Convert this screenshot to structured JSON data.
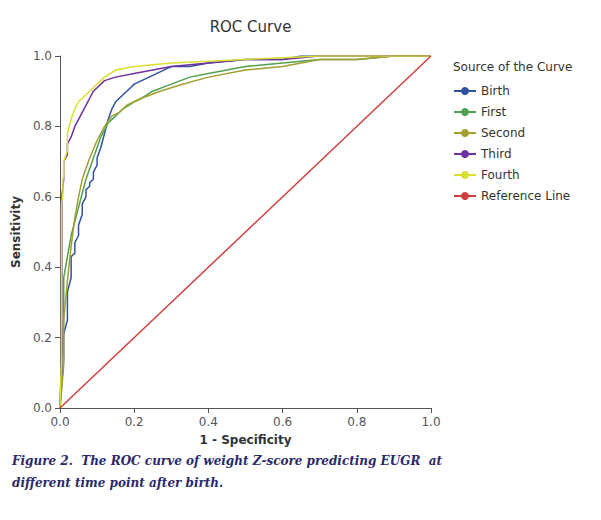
{
  "chart_data": {
    "type": "line",
    "title": "ROC Curve",
    "xlabel": "1 - Specificity",
    "ylabel": "Sensitivity",
    "legend_title": "Source of the Curve",
    "annotations": [
      "Figure 2.  The ROC curve of weight Z-score predicting EUGR  at",
      "different time point after birth."
    ],
    "xlim": [
      0.0,
      1.0
    ],
    "ylim": [
      0.0,
      1.0
    ],
    "xticks": [
      {
        "value": 0.0,
        "label": "0.0"
      },
      0.2,
      0.4,
      0.6,
      0.8,
      {
        "value": 1.0,
        "label": "1.0"
      }
    ],
    "yticks": [
      {
        "value": 0.0,
        "label": "0.0"
      },
      0.2,
      0.4,
      0.6,
      0.8,
      {
        "value": 1.0,
        "label": "1.0"
      }
    ],
    "grid": false,
    "legend": "right",
    "series": [
      {
        "name": "Birth",
        "color": "#3050a0",
        "x": [
          0.0,
          0.01,
          0.01,
          0.02,
          0.02,
          0.03,
          0.03,
          0.04,
          0.04,
          0.05,
          0.05,
          0.06,
          0.06,
          0.07,
          0.07,
          0.08,
          0.08,
          0.09,
          0.09,
          0.1,
          0.1,
          0.11,
          0.12,
          0.13,
          0.14,
          0.15,
          0.16,
          0.17,
          0.18,
          0.19,
          0.2,
          0.22,
          0.24,
          0.26,
          0.28,
          0.3,
          0.35,
          0.4,
          0.5,
          0.55,
          0.6,
          0.65,
          0.7,
          0.8,
          0.9,
          1.0
        ],
        "values": [
          0.0,
          0.14,
          0.21,
          0.25,
          0.33,
          0.37,
          0.43,
          0.44,
          0.47,
          0.49,
          0.52,
          0.55,
          0.58,
          0.6,
          0.62,
          0.63,
          0.64,
          0.65,
          0.67,
          0.69,
          0.71,
          0.74,
          0.78,
          0.82,
          0.85,
          0.87,
          0.88,
          0.89,
          0.9,
          0.91,
          0.92,
          0.93,
          0.94,
          0.95,
          0.96,
          0.97,
          0.97,
          0.98,
          0.99,
          0.99,
          0.99,
          1.0,
          1.0,
          1.0,
          1.0,
          1.0
        ]
      },
      {
        "name": "First",
        "color": "#50a050",
        "x": [
          0.0,
          0.01,
          0.01,
          0.02,
          0.03,
          0.04,
          0.05,
          0.06,
          0.07,
          0.08,
          0.09,
          0.1,
          0.11,
          0.12,
          0.13,
          0.15,
          0.17,
          0.2,
          0.22,
          0.25,
          0.3,
          0.35,
          0.4,
          0.5,
          0.6,
          0.7,
          0.8,
          0.9,
          1.0
        ],
        "values": [
          0.0,
          0.25,
          0.37,
          0.43,
          0.49,
          0.53,
          0.57,
          0.61,
          0.65,
          0.68,
          0.71,
          0.74,
          0.77,
          0.79,
          0.81,
          0.83,
          0.85,
          0.87,
          0.88,
          0.9,
          0.92,
          0.94,
          0.95,
          0.97,
          0.98,
          0.99,
          0.99,
          1.0,
          1.0
        ]
      },
      {
        "name": "Second",
        "color": "#a0a030",
        "x": [
          0.0,
          0.01,
          0.01,
          0.02,
          0.03,
          0.04,
          0.05,
          0.06,
          0.08,
          0.1,
          0.12,
          0.14,
          0.16,
          0.18,
          0.22,
          0.27,
          0.33,
          0.4,
          0.5,
          0.6,
          0.7,
          0.8,
          0.9,
          1.0
        ],
        "values": [
          0.0,
          0.12,
          0.25,
          0.36,
          0.46,
          0.54,
          0.6,
          0.65,
          0.71,
          0.76,
          0.8,
          0.83,
          0.84,
          0.86,
          0.88,
          0.9,
          0.92,
          0.94,
          0.96,
          0.97,
          0.99,
          0.99,
          1.0,
          1.0
        ]
      },
      {
        "name": "Third",
        "color": "#7030a0",
        "x": [
          0.0,
          0.005,
          0.005,
          0.01,
          0.01,
          0.02,
          0.02,
          0.03,
          0.04,
          0.05,
          0.06,
          0.07,
          0.08,
          0.09,
          0.1,
          0.12,
          0.15,
          0.2,
          0.25,
          0.3,
          0.4,
          0.5,
          0.6,
          0.7,
          0.8,
          0.9,
          1.0
        ],
        "values": [
          0.0,
          0.18,
          0.6,
          0.65,
          0.7,
          0.72,
          0.75,
          0.77,
          0.8,
          0.82,
          0.84,
          0.86,
          0.88,
          0.9,
          0.91,
          0.93,
          0.94,
          0.95,
          0.96,
          0.97,
          0.98,
          0.99,
          0.99,
          1.0,
          1.0,
          1.0,
          1.0
        ]
      },
      {
        "name": "Fourth",
        "color": "#d8e030",
        "x": [
          0.0,
          0.004,
          0.004,
          0.008,
          0.008,
          0.01,
          0.01,
          0.02,
          0.02,
          0.03,
          0.04,
          0.05,
          0.06,
          0.07,
          0.08,
          0.1,
          0.12,
          0.15,
          0.2,
          0.25,
          0.3,
          0.4,
          0.5,
          0.6,
          0.7,
          0.8,
          0.9,
          1.0
        ],
        "values": [
          0.0,
          0.14,
          0.58,
          0.61,
          0.65,
          0.66,
          0.7,
          0.73,
          0.78,
          0.82,
          0.85,
          0.87,
          0.88,
          0.89,
          0.9,
          0.92,
          0.94,
          0.96,
          0.97,
          0.975,
          0.98,
          0.985,
          0.99,
          0.995,
          1.0,
          1.0,
          1.0,
          1.0
        ]
      },
      {
        "name": "Reference Line",
        "color": "#d04040",
        "x": [
          0,
          1
        ],
        "values": [
          0,
          1
        ]
      }
    ]
  }
}
